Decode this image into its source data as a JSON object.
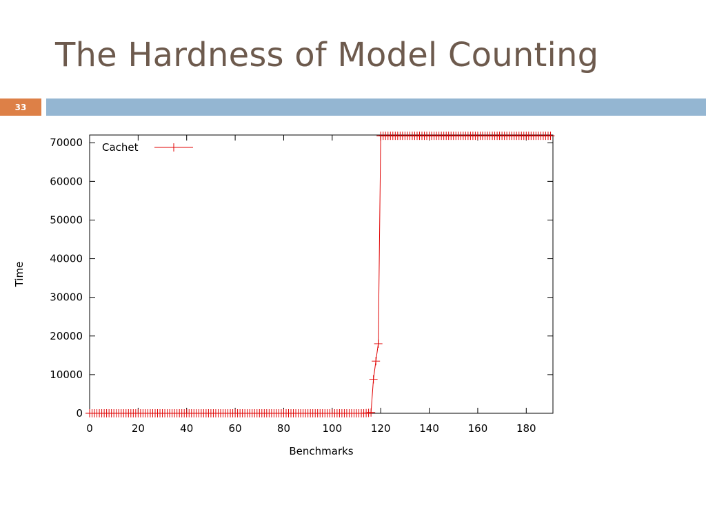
{
  "slide": {
    "title": "The Hardness of Model Counting",
    "number": "33"
  },
  "colors": {
    "title": "#6d5a4d",
    "number_box": "#dd8047",
    "band": "#94b6d2",
    "series": "#e00000"
  },
  "chart_data": {
    "type": "line",
    "title": "",
    "xlabel": "Benchmarks",
    "ylabel": "Time",
    "xlim": [
      0,
      191
    ],
    "ylim": [
      0,
      72000
    ],
    "xticks": [
      0,
      20,
      40,
      60,
      80,
      100,
      120,
      140,
      160,
      180
    ],
    "yticks": [
      0,
      10000,
      20000,
      30000,
      40000,
      50000,
      60000,
      70000
    ],
    "grid": false,
    "legend": "top-left",
    "series": [
      {
        "name": "Cachet",
        "marker": "+",
        "points": [
          [
            0,
            0
          ],
          [
            1,
            0
          ],
          [
            2,
            0
          ],
          [
            3,
            0
          ],
          [
            4,
            0
          ],
          [
            5,
            0
          ],
          [
            6,
            0
          ],
          [
            7,
            0
          ],
          [
            8,
            0
          ],
          [
            9,
            0
          ],
          [
            10,
            0
          ],
          [
            11,
            0
          ],
          [
            12,
            0
          ],
          [
            13,
            0
          ],
          [
            14,
            0
          ],
          [
            15,
            0
          ],
          [
            16,
            0
          ],
          [
            17,
            0
          ],
          [
            18,
            0
          ],
          [
            19,
            0
          ],
          [
            20,
            0
          ],
          [
            21,
            0
          ],
          [
            22,
            0
          ],
          [
            23,
            0
          ],
          [
            24,
            0
          ],
          [
            25,
            0
          ],
          [
            26,
            0
          ],
          [
            27,
            0
          ],
          [
            28,
            0
          ],
          [
            29,
            0
          ],
          [
            30,
            0
          ],
          [
            31,
            0
          ],
          [
            32,
            0
          ],
          [
            33,
            0
          ],
          [
            34,
            0
          ],
          [
            35,
            0
          ],
          [
            36,
            0
          ],
          [
            37,
            0
          ],
          [
            38,
            0
          ],
          [
            39,
            0
          ],
          [
            40,
            0
          ],
          [
            41,
            0
          ],
          [
            42,
            0
          ],
          [
            43,
            0
          ],
          [
            44,
            0
          ],
          [
            45,
            0
          ],
          [
            46,
            0
          ],
          [
            47,
            0
          ],
          [
            48,
            0
          ],
          [
            49,
            0
          ],
          [
            50,
            0
          ],
          [
            51,
            0
          ],
          [
            52,
            0
          ],
          [
            53,
            0
          ],
          [
            54,
            0
          ],
          [
            55,
            0
          ],
          [
            56,
            0
          ],
          [
            57,
            0
          ],
          [
            58,
            0
          ],
          [
            59,
            0
          ],
          [
            60,
            0
          ],
          [
            61,
            0
          ],
          [
            62,
            0
          ],
          [
            63,
            0
          ],
          [
            64,
            0
          ],
          [
            65,
            0
          ],
          [
            66,
            0
          ],
          [
            67,
            0
          ],
          [
            68,
            0
          ],
          [
            69,
            0
          ],
          [
            70,
            0
          ],
          [
            71,
            0
          ],
          [
            72,
            0
          ],
          [
            73,
            0
          ],
          [
            74,
            0
          ],
          [
            75,
            0
          ],
          [
            76,
            0
          ],
          [
            77,
            0
          ],
          [
            78,
            0
          ],
          [
            79,
            0
          ],
          [
            80,
            0
          ],
          [
            81,
            0
          ],
          [
            82,
            0
          ],
          [
            83,
            0
          ],
          [
            84,
            0
          ],
          [
            85,
            0
          ],
          [
            86,
            0
          ],
          [
            87,
            0
          ],
          [
            88,
            0
          ],
          [
            89,
            0
          ],
          [
            90,
            0
          ],
          [
            91,
            0
          ],
          [
            92,
            0
          ],
          [
            93,
            0
          ],
          [
            94,
            0
          ],
          [
            95,
            0
          ],
          [
            96,
            0
          ],
          [
            97,
            0
          ],
          [
            98,
            0
          ],
          [
            99,
            0
          ],
          [
            100,
            0
          ],
          [
            101,
            0
          ],
          [
            102,
            0
          ],
          [
            103,
            0
          ],
          [
            104,
            0
          ],
          [
            105,
            0
          ],
          [
            106,
            0
          ],
          [
            107,
            0
          ],
          [
            108,
            0
          ],
          [
            109,
            0
          ],
          [
            110,
            0
          ],
          [
            111,
            0
          ],
          [
            112,
            0
          ],
          [
            113,
            0
          ],
          [
            114,
            50
          ],
          [
            115,
            100
          ],
          [
            116,
            200
          ],
          [
            117,
            8800
          ],
          [
            118,
            13500
          ],
          [
            119,
            18000
          ],
          [
            120,
            71800
          ],
          [
            121,
            71800
          ],
          [
            122,
            71800
          ],
          [
            123,
            71800
          ],
          [
            124,
            71800
          ],
          [
            125,
            71800
          ],
          [
            126,
            71800
          ],
          [
            127,
            71800
          ],
          [
            128,
            71800
          ],
          [
            129,
            71800
          ],
          [
            130,
            71800
          ],
          [
            131,
            71800
          ],
          [
            132,
            71800
          ],
          [
            133,
            71800
          ],
          [
            134,
            71800
          ],
          [
            135,
            71800
          ],
          [
            136,
            71800
          ],
          [
            137,
            71800
          ],
          [
            138,
            71800
          ],
          [
            139,
            71800
          ],
          [
            140,
            71800
          ],
          [
            141,
            71800
          ],
          [
            142,
            71800
          ],
          [
            143,
            71800
          ],
          [
            144,
            71800
          ],
          [
            145,
            71800
          ],
          [
            146,
            71800
          ],
          [
            147,
            71800
          ],
          [
            148,
            71800
          ],
          [
            149,
            71800
          ],
          [
            150,
            71800
          ],
          [
            151,
            71800
          ],
          [
            152,
            71800
          ],
          [
            153,
            71800
          ],
          [
            154,
            71800
          ],
          [
            155,
            71800
          ],
          [
            156,
            71800
          ],
          [
            157,
            71800
          ],
          [
            158,
            71800
          ],
          [
            159,
            71800
          ],
          [
            160,
            71800
          ],
          [
            161,
            71800
          ],
          [
            162,
            71800
          ],
          [
            163,
            71800
          ],
          [
            164,
            71800
          ],
          [
            165,
            71800
          ],
          [
            166,
            71800
          ],
          [
            167,
            71800
          ],
          [
            168,
            71800
          ],
          [
            169,
            71800
          ],
          [
            170,
            71800
          ],
          [
            171,
            71800
          ],
          [
            172,
            71800
          ],
          [
            173,
            71800
          ],
          [
            174,
            71800
          ],
          [
            175,
            71800
          ],
          [
            176,
            71800
          ],
          [
            177,
            71800
          ],
          [
            178,
            71800
          ],
          [
            179,
            71800
          ],
          [
            180,
            71800
          ],
          [
            181,
            71800
          ],
          [
            182,
            71800
          ],
          [
            183,
            71800
          ],
          [
            184,
            71800
          ],
          [
            185,
            71800
          ],
          [
            186,
            71800
          ],
          [
            187,
            71800
          ],
          [
            188,
            71800
          ],
          [
            189,
            71800
          ],
          [
            190,
            71800
          ]
        ]
      }
    ]
  }
}
